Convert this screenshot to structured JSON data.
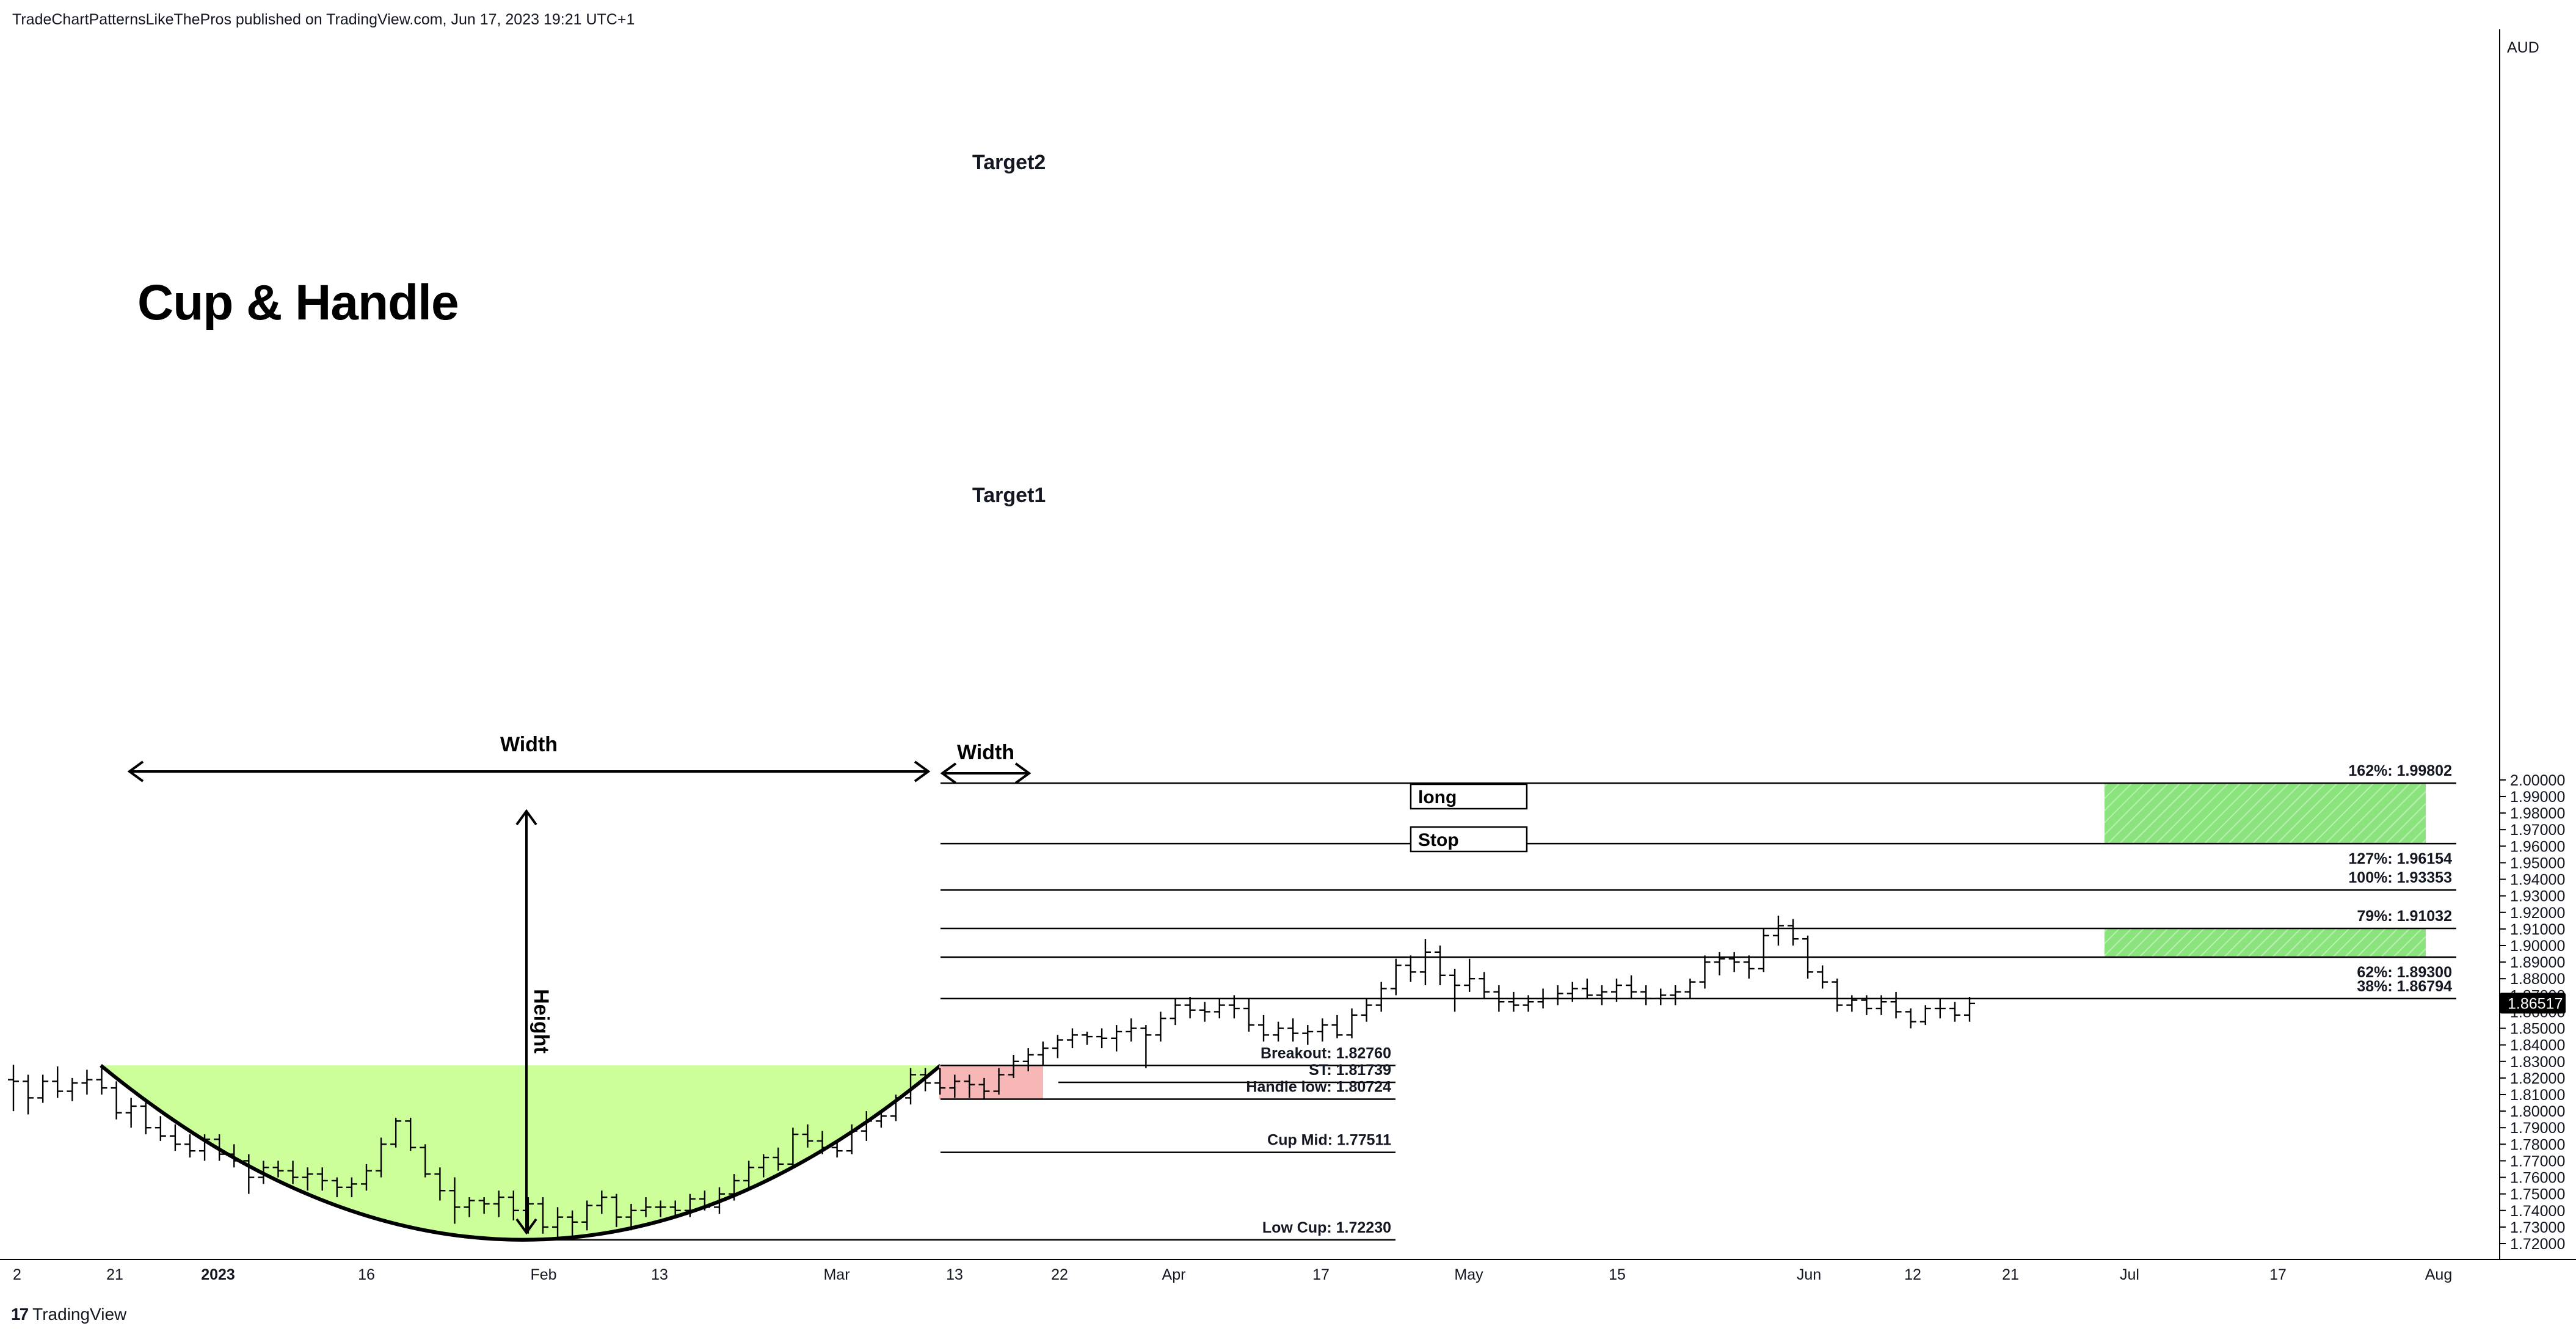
{
  "header": {
    "text": "TradeChartPatternsLikeThePros published on TradingView.com, Jun 17, 2023 19:21 UTC+1"
  },
  "footer": {
    "logo": "17",
    "brand": "TradingView"
  },
  "colors": {
    "cup_fill": "#ccff99",
    "handle_fill": "#f8b7b7",
    "target_fill": "#8be37e",
    "price_tag_bg": "#000000",
    "line": "#000000"
  },
  "chart_data": {
    "type": "bar",
    "symbol_currency": "AUD",
    "title": "Cup & Handle",
    "ylim": [
      1.715,
      2.008
    ],
    "y_ticks": [
      1.72,
      1.73,
      1.74,
      1.75,
      1.76,
      1.77,
      1.78,
      1.79,
      1.8,
      1.81,
      1.82,
      1.83,
      1.84,
      1.85,
      1.86,
      1.87,
      1.88,
      1.89,
      1.9,
      1.91,
      1.92,
      1.93,
      1.94,
      1.95,
      1.96,
      1.97,
      1.98,
      1.99,
      2.0
    ],
    "x_ticks": [
      {
        "label": "2",
        "bold": false
      },
      {
        "label": "21",
        "bold": false
      },
      {
        "label": "2023",
        "bold": true
      },
      {
        "label": "16",
        "bold": false
      },
      {
        "label": "Feb",
        "bold": false
      },
      {
        "label": "13",
        "bold": false
      },
      {
        "label": "Mar",
        "bold": false
      },
      {
        "label": "13",
        "bold": false
      },
      {
        "label": "22",
        "bold": false
      },
      {
        "label": "Apr",
        "bold": false
      },
      {
        "label": "17",
        "bold": false
      },
      {
        "label": "May",
        "bold": false
      },
      {
        "label": "15",
        "bold": false
      },
      {
        "label": "Jun",
        "bold": false
      },
      {
        "label": "12",
        "bold": false
      },
      {
        "label": "21",
        "bold": false
      },
      {
        "label": "Jul",
        "bold": false
      },
      {
        "label": "17",
        "bold": false
      },
      {
        "label": "Aug",
        "bold": false
      }
    ],
    "current_price": "1.86517",
    "bars_ohlc": [
      [
        1.819,
        1.828,
        1.8,
        1.818
      ],
      [
        1.818,
        1.822,
        1.798,
        1.808
      ],
      [
        1.808,
        1.822,
        1.805,
        1.818
      ],
      [
        1.818,
        1.827,
        1.808,
        1.812
      ],
      [
        1.812,
        1.82,
        1.806,
        1.817
      ],
      [
        1.817,
        1.825,
        1.81,
        1.819
      ],
      [
        1.819,
        1.828,
        1.81,
        1.814
      ],
      [
        1.814,
        1.818,
        1.795,
        1.799
      ],
      [
        1.799,
        1.808,
        1.79,
        1.803
      ],
      [
        1.803,
        1.806,
        1.786,
        1.79
      ],
      [
        1.79,
        1.797,
        1.782,
        1.785
      ],
      [
        1.785,
        1.792,
        1.776,
        1.78
      ],
      [
        1.78,
        1.786,
        1.772,
        1.776
      ],
      [
        1.776,
        1.786,
        1.77,
        1.783
      ],
      [
        1.783,
        1.786,
        1.77,
        1.774
      ],
      [
        1.774,
        1.78,
        1.766,
        1.77
      ],
      [
        1.77,
        1.774,
        1.75,
        1.76
      ],
      [
        1.76,
        1.77,
        1.756,
        1.766
      ],
      [
        1.766,
        1.77,
        1.76,
        1.764
      ],
      [
        1.764,
        1.77,
        1.756,
        1.76
      ],
      [
        1.76,
        1.766,
        1.752,
        1.762
      ],
      [
        1.762,
        1.766,
        1.752,
        1.758
      ],
      [
        1.758,
        1.76,
        1.748,
        1.754
      ],
      [
        1.754,
        1.76,
        1.748,
        1.756
      ],
      [
        1.756,
        1.768,
        1.752,
        1.764
      ],
      [
        1.764,
        1.784,
        1.76,
        1.78
      ],
      [
        1.78,
        1.796,
        1.778,
        1.794
      ],
      [
        1.794,
        1.796,
        1.776,
        1.778
      ],
      [
        1.778,
        1.78,
        1.76,
        1.762
      ],
      [
        1.762,
        1.766,
        1.746,
        1.752
      ],
      [
        1.752,
        1.76,
        1.732,
        1.742
      ],
      [
        1.742,
        1.748,
        1.736,
        1.746
      ],
      [
        1.746,
        1.748,
        1.738,
        1.744
      ],
      [
        1.744,
        1.752,
        1.736,
        1.748
      ],
      [
        1.748,
        1.752,
        1.734,
        1.74
      ],
      [
        1.74,
        1.748,
        1.726,
        1.744
      ],
      [
        1.744,
        1.748,
        1.726,
        1.73
      ],
      [
        1.73,
        1.742,
        1.724,
        1.736
      ],
      [
        1.736,
        1.74,
        1.722,
        1.733
      ],
      [
        1.733,
        1.746,
        1.728,
        1.743
      ],
      [
        1.743,
        1.752,
        1.738,
        1.748
      ],
      [
        1.748,
        1.75,
        1.73,
        1.736
      ],
      [
        1.736,
        1.744,
        1.728,
        1.74
      ],
      [
        1.74,
        1.748,
        1.736,
        1.742
      ],
      [
        1.742,
        1.746,
        1.736,
        1.742
      ],
      [
        1.742,
        1.746,
        1.736,
        1.74
      ],
      [
        1.74,
        1.75,
        1.736,
        1.747
      ],
      [
        1.747,
        1.752,
        1.74,
        1.742
      ],
      [
        1.742,
        1.754,
        1.738,
        1.75
      ],
      [
        1.75,
        1.762,
        1.746,
        1.758
      ],
      [
        1.758,
        1.77,
        1.754,
        1.766
      ],
      [
        1.766,
        1.774,
        1.76,
        1.772
      ],
      [
        1.772,
        1.778,
        1.764,
        1.768
      ],
      [
        1.768,
        1.79,
        1.766,
        1.786
      ],
      [
        1.786,
        1.792,
        1.778,
        1.782
      ],
      [
        1.782,
        1.788,
        1.774,
        1.778
      ],
      [
        1.778,
        1.782,
        1.772,
        1.776
      ],
      [
        1.776,
        1.792,
        1.774,
        1.788
      ],
      [
        1.788,
        1.8,
        1.782,
        1.794
      ],
      [
        1.794,
        1.8,
        1.79,
        1.797
      ],
      [
        1.797,
        1.81,
        1.794,
        1.808
      ],
      [
        1.808,
        1.826,
        1.804,
        1.822
      ],
      [
        1.822,
        1.826,
        1.812,
        1.817
      ],
      [
        1.817,
        1.826,
        1.81,
        1.814
      ],
      [
        1.814,
        1.822,
        1.808,
        1.818
      ],
      [
        1.818,
        1.822,
        1.808,
        1.816
      ],
      [
        1.816,
        1.82,
        1.807,
        1.812
      ],
      [
        1.812,
        1.826,
        1.81,
        1.822
      ],
      [
        1.822,
        1.834,
        1.82,
        1.83
      ],
      [
        1.83,
        1.838,
        1.824,
        1.834
      ],
      [
        1.834,
        1.842,
        1.828,
        1.838
      ],
      [
        1.838,
        1.846,
        1.832,
        1.843
      ],
      [
        1.843,
        1.85,
        1.838,
        1.846
      ],
      [
        1.846,
        1.848,
        1.84,
        1.845
      ],
      [
        1.845,
        1.85,
        1.838,
        1.844
      ],
      [
        1.844,
        1.852,
        1.836,
        1.848
      ],
      [
        1.848,
        1.856,
        1.842,
        1.85
      ],
      [
        1.85,
        1.852,
        1.826,
        1.846
      ],
      [
        1.846,
        1.86,
        1.842,
        1.856
      ],
      [
        1.856,
        1.868,
        1.852,
        1.864
      ],
      [
        1.864,
        1.869,
        1.856,
        1.861
      ],
      [
        1.861,
        1.866,
        1.854,
        1.86
      ],
      [
        1.86,
        1.868,
        1.856,
        1.864
      ],
      [
        1.864,
        1.87,
        1.856,
        1.862
      ],
      [
        1.862,
        1.868,
        1.848,
        1.852
      ],
      [
        1.852,
        1.858,
        1.842,
        1.846
      ],
      [
        1.846,
        1.854,
        1.842,
        1.85
      ],
      [
        1.85,
        1.856,
        1.842,
        1.847
      ],
      [
        1.847,
        1.852,
        1.84,
        1.848
      ],
      [
        1.848,
        1.856,
        1.842,
        1.852
      ],
      [
        1.852,
        1.858,
        1.844,
        1.846
      ],
      [
        1.846,
        1.862,
        1.844,
        1.858
      ],
      [
        1.858,
        1.868,
        1.854,
        1.864
      ],
      [
        1.864,
        1.878,
        1.86,
        1.874
      ],
      [
        1.874,
        1.892,
        1.87,
        1.888
      ],
      [
        1.888,
        1.894,
        1.878,
        1.884
      ],
      [
        1.884,
        1.904,
        1.876,
        1.896
      ],
      [
        1.896,
        1.9,
        1.876,
        1.882
      ],
      [
        1.882,
        1.886,
        1.86,
        1.876
      ],
      [
        1.876,
        1.892,
        1.872,
        1.88
      ],
      [
        1.88,
        1.884,
        1.868,
        1.872
      ],
      [
        1.872,
        1.876,
        1.86,
        1.866
      ],
      [
        1.866,
        1.872,
        1.86,
        1.864
      ],
      [
        1.864,
        1.87,
        1.86,
        1.866
      ],
      [
        1.866,
        1.874,
        1.862,
        1.868
      ],
      [
        1.868,
        1.876,
        1.864,
        1.871
      ],
      [
        1.871,
        1.878,
        1.866,
        1.874
      ],
      [
        1.874,
        1.88,
        1.868,
        1.87
      ],
      [
        1.87,
        1.876,
        1.864,
        1.872
      ],
      [
        1.872,
        1.88,
        1.866,
        1.876
      ],
      [
        1.876,
        1.882,
        1.868,
        1.872
      ],
      [
        1.872,
        1.876,
        1.864,
        1.868
      ],
      [
        1.868,
        1.874,
        1.864,
        1.87
      ],
      [
        1.87,
        1.876,
        1.864,
        1.872
      ],
      [
        1.872,
        1.88,
        1.868,
        1.878
      ],
      [
        1.878,
        1.894,
        1.874,
        1.89
      ],
      [
        1.89,
        1.896,
        1.882,
        1.892
      ],
      [
        1.892,
        1.896,
        1.884,
        1.89
      ],
      [
        1.89,
        1.894,
        1.88,
        1.886
      ],
      [
        1.886,
        1.91,
        1.884,
        1.906
      ],
      [
        1.906,
        1.918,
        1.9,
        1.912
      ],
      [
        1.912,
        1.916,
        1.9,
        1.904
      ],
      [
        1.904,
        1.906,
        1.88,
        1.884
      ],
      [
        1.884,
        1.888,
        1.874,
        1.878
      ],
      [
        1.878,
        1.88,
        1.86,
        1.864
      ],
      [
        1.864,
        1.87,
        1.86,
        1.867
      ],
      [
        1.867,
        1.87,
        1.858,
        1.862
      ],
      [
        1.862,
        1.87,
        1.858,
        1.866
      ],
      [
        1.866,
        1.872,
        1.856,
        1.86
      ],
      [
        1.86,
        1.862,
        1.85,
        1.854
      ],
      [
        1.854,
        1.864,
        1.852,
        1.862
      ],
      [
        1.862,
        1.868,
        1.856,
        1.862
      ],
      [
        1.862,
        1.866,
        1.854,
        1.858
      ],
      [
        1.858,
        1.869,
        1.854,
        1.865
      ]
    ],
    "levels": [
      {
        "name": "162%",
        "label": "162%: 1.99802",
        "value": 1.99802
      },
      {
        "name": "127%",
        "label": "127%: 1.96154",
        "value": 1.96154
      },
      {
        "name": "100%",
        "label": "100%: 1.93353",
        "value": 1.93353
      },
      {
        "name": "79%",
        "label": "79%: 1.91032",
        "value": 1.91032
      },
      {
        "name": "62%",
        "label": "62%: 1.89300",
        "value": 1.893
      },
      {
        "name": "38%",
        "label": "38%: 1.86794",
        "value": 1.86794
      },
      {
        "name": "breakout",
        "label": "Breakout: 1.82760",
        "value": 1.8276
      },
      {
        "name": "st",
        "label": "ST: 1.81739",
        "value": 1.81739
      },
      {
        "name": "handle-low",
        "label": "Handle low: 1.80724",
        "value": 1.80724
      },
      {
        "name": "cup-mid",
        "label": "Cup Mid: 1.77511",
        "value": 1.77511
      },
      {
        "name": "low-cup",
        "label": "Low Cup: 1.72230",
        "value": 1.7223
      }
    ],
    "annotations": {
      "target2": "Target2",
      "target1": "Target1",
      "cup_width": "Width",
      "handle_width": "Width",
      "height": "Height",
      "long_box": "long",
      "stop_box": "Stop"
    }
  }
}
